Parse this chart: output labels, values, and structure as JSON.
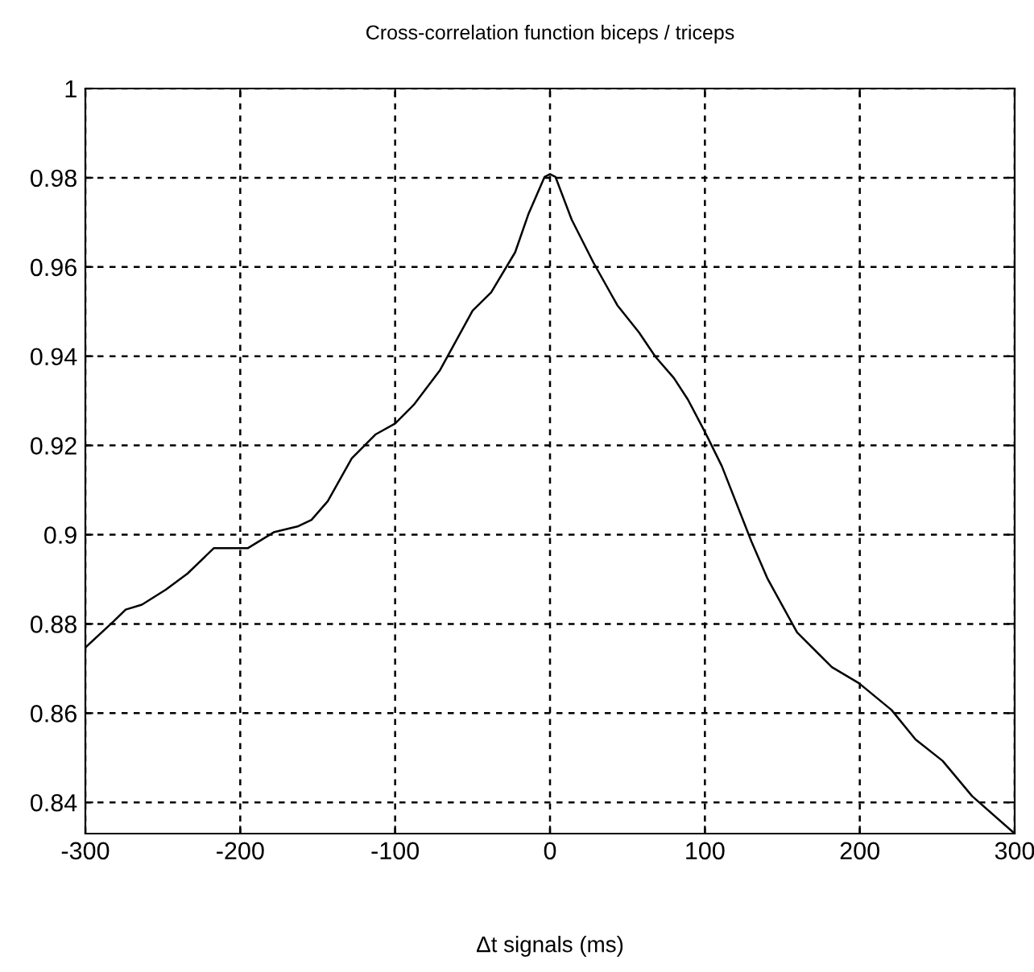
{
  "chart_data": {
    "type": "line",
    "title": "Cross-correlation function biceps / triceps",
    "xlabel": "Δt signals (ms)",
    "x": [
      -300,
      -282,
      -274,
      -263.5,
      -248,
      -234,
      -217,
      -195,
      -178,
      -162.5,
      -154,
      -143.5,
      -128,
      -112.5,
      -100,
      -88,
      -71,
      -50,
      -38,
      -22.5,
      -14,
      -3.5,
      0,
      3.5,
      14,
      28,
      43.5,
      57.5,
      68,
      80,
      89,
      99,
      102.5,
      111,
      130,
      140.5,
      159.5,
      182,
      199.5,
      220.5,
      236,
      253.5,
      272.5,
      300
    ],
    "series": [
      {
        "color": "#000000",
        "values": [
          0.8747,
          0.8805,
          0.8832,
          0.8843,
          0.8877,
          0.8913,
          0.897,
          0.897,
          0.9006,
          0.9019,
          0.9033,
          0.9075,
          0.9171,
          0.9225,
          0.9249,
          0.9291,
          0.9369,
          0.9502,
          0.9543,
          0.9633,
          0.9718,
          0.9802,
          0.9808,
          0.9802,
          0.9706,
          0.961,
          0.9514,
          0.9453,
          0.9399,
          0.9351,
          0.9303,
          0.9237,
          0.9213,
          0.9153,
          0.8985,
          0.8901,
          0.8781,
          0.8703,
          0.8667,
          0.8607,
          0.8541,
          0.8493,
          0.8414,
          0.833
        ]
      }
    ],
    "xlim": [
      -300,
      300
    ],
    "xticks": [
      -300,
      -200,
      -100,
      0,
      100,
      200,
      300
    ],
    "ylim": [
      0.833,
      1
    ],
    "yticks": [
      0.84,
      0.86,
      0.88,
      0.9,
      0.92,
      0.94,
      0.96,
      0.98,
      1
    ],
    "grid": true,
    "line_style": "solid",
    "marker": "none"
  }
}
